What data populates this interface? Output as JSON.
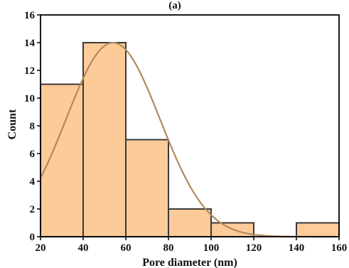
{
  "chart_data": {
    "type": "bar",
    "panel_label": "(a)",
    "xlabel": "Pore diameter (nm)",
    "ylabel": "Count",
    "xlim": [
      20,
      160
    ],
    "ylim": [
      0,
      16
    ],
    "xticks": [
      "20",
      "40",
      "60",
      "80",
      "100",
      "120",
      "140",
      "160"
    ],
    "yticks": [
      "0",
      "2",
      "4",
      "6",
      "8",
      "10",
      "12",
      "14",
      "16"
    ],
    "bins": [
      {
        "start": 20,
        "end": 40,
        "count": 11
      },
      {
        "start": 40,
        "end": 60,
        "count": 14
      },
      {
        "start": 60,
        "end": 80,
        "count": 7
      },
      {
        "start": 80,
        "end": 100,
        "count": 2
      },
      {
        "start": 100,
        "end": 120,
        "count": 1
      },
      {
        "start": 120,
        "end": 140,
        "count": 0
      },
      {
        "start": 140,
        "end": 160,
        "count": 1
      }
    ],
    "fit_curve": {
      "type": "gaussian",
      "peak": 14,
      "mean": 54,
      "sigma": 22
    },
    "colors": {
      "bar_fill": "#fdcb98",
      "bar_edge": "#3a3a3a",
      "curve": "#b08a5e",
      "axis": "#000000"
    }
  }
}
